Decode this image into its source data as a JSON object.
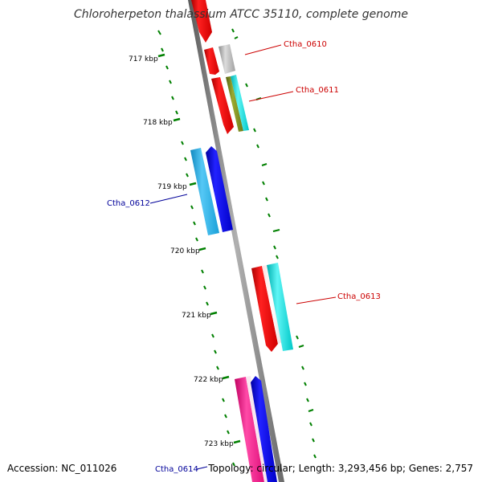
{
  "title": "Chloroherpeton thalassium ATCC 35110, complete genome",
  "footer": {
    "accession": "Accession: NC_011026",
    "summary": "Topology: circular; Length: 3,293,456 bp; Genes: 2,757"
  },
  "ticks": [
    "717 kbp",
    "718 kbp",
    "719 kbp",
    "720 kbp",
    "721 kbp",
    "722 kbp",
    "723 kbp"
  ],
  "gene_labels": {
    "ctha_0610": "Ctha_0610",
    "ctha_0611": "Ctha_0611",
    "ctha_0612": "Ctha_0612",
    "ctha_0613": "Ctha_0613",
    "ctha_0614": "Ctha_0614"
  },
  "colors": {
    "backbone": "#808080",
    "tick": "#008000",
    "cds_forward": "#ff0000",
    "cds_reverse": "#0000ff",
    "label_forward": "#cc0000",
    "label_reverse": "#000099",
    "cyan": "#00e5e5",
    "light_blue": "#2ab4e8",
    "gray": "#b0b0b0",
    "olive": "#7a8a1a",
    "pink": "#ff1493"
  }
}
